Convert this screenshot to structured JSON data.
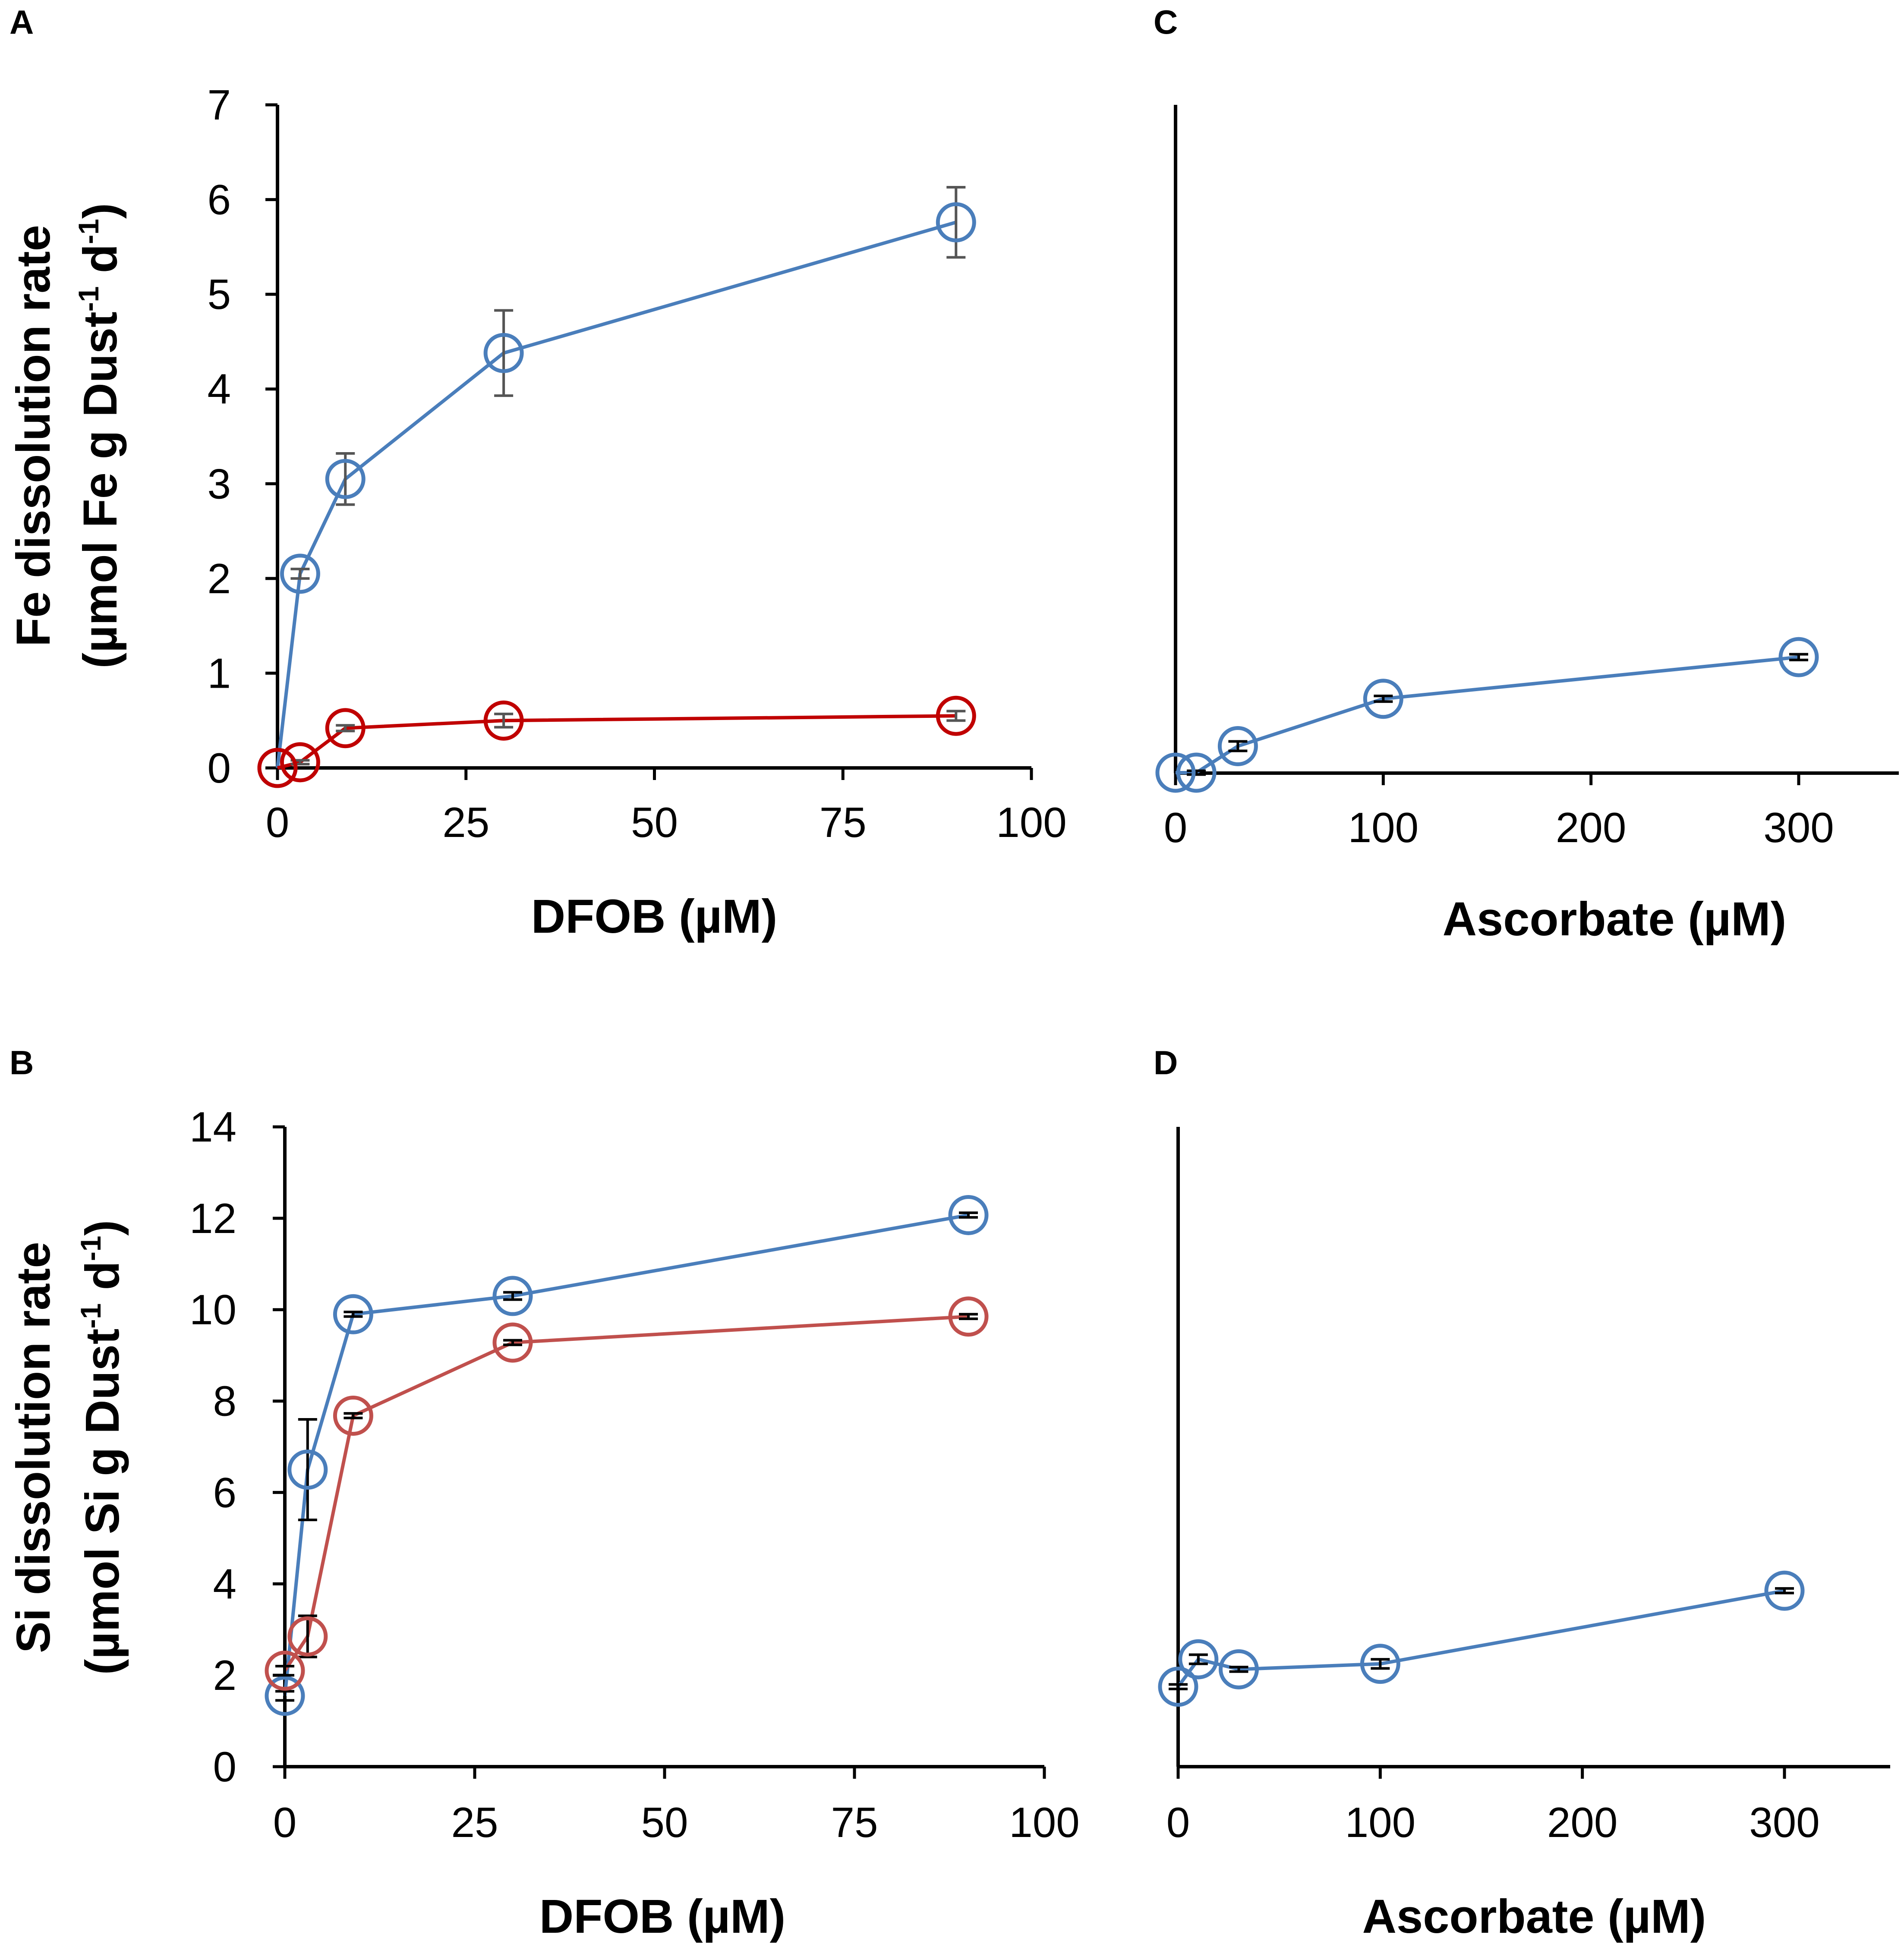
{
  "chart_data": [
    {
      "panel": "A",
      "type": "line",
      "xlabel": "DFOB (µM)",
      "ylabel_line1": "Fe dissolution rate",
      "ylabel_line2_pre": "(µmol Fe g Dust",
      "ylabel_line2_mid": " d",
      "ylabel_line2_post": ")",
      "ylabel_sup": "-1",
      "xlim": [
        0,
        100
      ],
      "ylim": [
        0,
        7
      ],
      "xticks": [
        0,
        25,
        50,
        75,
        100
      ],
      "yticks": [
        0,
        1,
        2,
        3,
        4,
        5,
        6,
        7
      ],
      "show_yticks": true,
      "series": [
        {
          "name": "blue",
          "color": "#4a7ebb",
          "errcolor": "#555555",
          "x": [
            0,
            3,
            9,
            30,
            90
          ],
          "y": [
            0,
            2.05,
            3.05,
            4.38,
            5.76
          ],
          "err": [
            0,
            0.05,
            0.27,
            0.45,
            0.37
          ]
        },
        {
          "name": "red",
          "color": "#c00000",
          "errcolor": "#555555",
          "x": [
            0,
            3,
            9,
            30,
            90
          ],
          "y": [
            0,
            0.06,
            0.42,
            0.5,
            0.55
          ],
          "err": [
            0,
            0.02,
            0.03,
            0.07,
            0.05
          ]
        }
      ]
    },
    {
      "panel": "C",
      "type": "line",
      "xlabel": "Ascorbate (µM)",
      "xlim": [
        0,
        350
      ],
      "ylim": [
        0,
        7
      ],
      "xticks": [
        0,
        100,
        200,
        300
      ],
      "show_yticks": false,
      "series": [
        {
          "name": "blue",
          "color": "#4a7ebb",
          "errcolor": "#000000",
          "x": [
            0,
            10,
            30,
            100,
            300
          ],
          "y": [
            -0.05,
            -0.05,
            0.23,
            0.73,
            1.17
          ],
          "err": [
            0,
            0.02,
            0.05,
            0.03,
            0.03
          ]
        }
      ]
    },
    {
      "panel": "B",
      "type": "line",
      "xlabel": "DFOB (µM)",
      "ylabel_line1": "Si dissolution rate",
      "ylabel_line2_pre": "(µmol Si g Dust",
      "ylabel_line2_mid": " d",
      "ylabel_line2_post": ")",
      "ylabel_sup": "-1",
      "xlim": [
        0,
        100
      ],
      "ylim": [
        0,
        14
      ],
      "xticks": [
        0,
        25,
        50,
        75,
        100
      ],
      "yticks": [
        0,
        2,
        4,
        6,
        8,
        10,
        12,
        14
      ],
      "show_yticks": true,
      "series": [
        {
          "name": "blue",
          "color": "#4a7ebb",
          "errcolor": "#000000",
          "x": [
            0,
            3,
            9,
            30,
            90
          ],
          "y": [
            1.55,
            6.5,
            9.9,
            10.3,
            12.07
          ],
          "err": [
            0.1,
            1.1,
            0.05,
            0.08,
            0.05
          ]
        },
        {
          "name": "red",
          "color": "#c0504d",
          "errcolor": "#000000",
          "x": [
            0,
            3,
            9,
            30,
            90
          ],
          "y": [
            2.1,
            2.85,
            7.68,
            9.28,
            9.85
          ],
          "err": [
            0.1,
            0.45,
            0.05,
            0.05,
            0.05
          ]
        }
      ]
    },
    {
      "panel": "D",
      "type": "line",
      "xlabel": "Ascorbate (µM)",
      "xlim": [
        0,
        350
      ],
      "ylim": [
        0,
        14
      ],
      "xticks": [
        0,
        100,
        200,
        300
      ],
      "show_yticks": false,
      "series": [
        {
          "name": "blue",
          "color": "#4a7ebb",
          "errcolor": "#000000",
          "x": [
            0,
            10,
            30,
            100,
            300
          ],
          "y": [
            1.75,
            2.35,
            2.13,
            2.25,
            3.85
          ],
          "err": [
            0.05,
            0.1,
            0.05,
            0.1,
            0.05
          ]
        }
      ]
    }
  ]
}
